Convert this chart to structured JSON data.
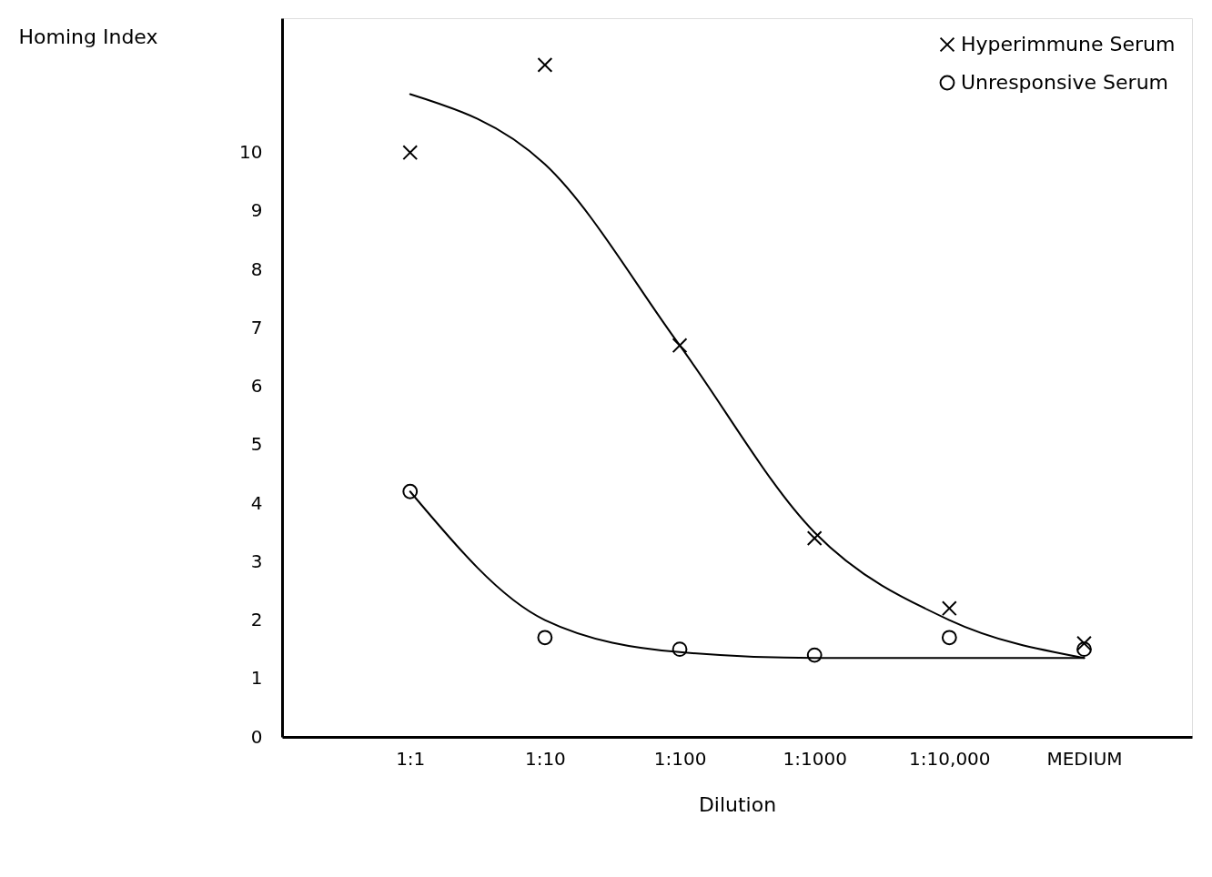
{
  "chart_data": {
    "type": "scatter",
    "xlabel": "Dilution",
    "ylabel": "Homing Index",
    "categories": [
      "1:1",
      "1:10",
      "1:100",
      "1:1000",
      "1:10,000",
      "MEDIUM"
    ],
    "ylim": [
      0,
      12.3
    ],
    "yticks": [
      0,
      1,
      2,
      3,
      4,
      5,
      6,
      7,
      8,
      9,
      10
    ],
    "grid": false,
    "legend": "top right",
    "series": [
      {
        "name": "Hyperimmune Serum",
        "marker": "cross",
        "color": "#000000",
        "values": [
          10.0,
          11.5,
          6.7,
          3.4,
          2.2,
          1.6
        ]
      },
      {
        "name": "Unresponsive Serum",
        "marker": "circle",
        "color": "#000000",
        "values": [
          4.2,
          1.7,
          1.5,
          1.4,
          1.7,
          1.5
        ]
      },
      {
        "type": "line",
        "marker": "none",
        "line_style": "solid",
        "color": "#000000",
        "values": [
          11.0,
          9.8,
          6.7,
          3.5,
          2.0,
          1.35
        ]
      },
      {
        "type": "line",
        "marker": "none",
        "line_style": "solid",
        "color": "#000000",
        "values": [
          4.2,
          2.0,
          1.45,
          1.35,
          1.35,
          1.35
        ]
      }
    ]
  }
}
